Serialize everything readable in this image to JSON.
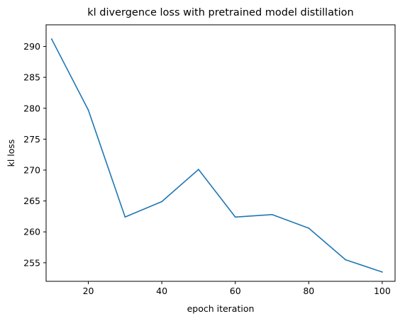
{
  "chart_data": {
    "type": "line",
    "title": "kl divergence loss with pretrained model distillation",
    "xlabel": "epoch iteration",
    "ylabel": "kl loss",
    "xlim": [
      8.5,
      103.5
    ],
    "ylim": [
      252,
      293.5
    ],
    "xticks": [
      20,
      40,
      60,
      80,
      100
    ],
    "yticks": [
      255,
      260,
      265,
      270,
      275,
      280,
      285,
      290
    ],
    "grid": false,
    "series": [
      {
        "color": "#1f77b4",
        "x": [
          10,
          20,
          30,
          40,
          50,
          60,
          70,
          80,
          90,
          100
        ],
        "y": [
          291.2,
          279.7,
          262.4,
          264.9,
          270.1,
          262.4,
          262.8,
          260.6,
          255.5,
          253.5
        ]
      }
    ]
  }
}
